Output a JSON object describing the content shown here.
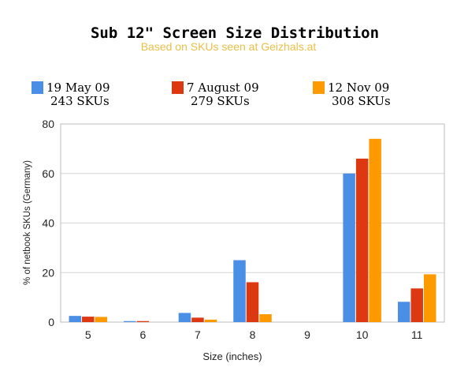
{
  "chart_data": {
    "type": "bar",
    "title": "Sub 12\" Screen Size Distribution",
    "subtitle": "Based on SKUs seen at Geizhals.at",
    "xlabel": "Size (inches)",
    "ylabel": "% of netbook SKUs (Germany)",
    "ylim": [
      0,
      80
    ],
    "yticks": [
      0,
      20,
      40,
      60,
      80
    ],
    "categories": [
      "5",
      "6",
      "7",
      "8",
      "9",
      "10",
      "11"
    ],
    "legend_position": "top",
    "series": [
      {
        "name": "19 May 09",
        "subname": "243 SKUs",
        "color": "#4a8ee6",
        "values": [
          2.5,
          0.4,
          3.7,
          25,
          0,
          60,
          8.2
        ]
      },
      {
        "name": "7 August 09",
        "subname": "279 SKUs",
        "color": "#dc3912",
        "values": [
          2.2,
          0.4,
          1.8,
          16.1,
          0,
          66,
          13.6
        ]
      },
      {
        "name": "12 Nov 09",
        "subname": "308 SKUs",
        "color": "#ff9900",
        "values": [
          2.1,
          0,
          1.0,
          3.2,
          0,
          74,
          19.3
        ]
      }
    ]
  }
}
